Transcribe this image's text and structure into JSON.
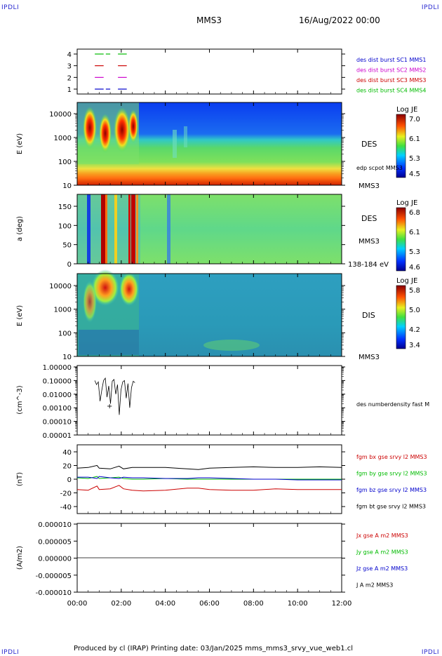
{
  "header": {
    "corner_left_top": "IPDLI",
    "corner_right_top": "IPDLI",
    "corner_left_bottom": "IPDLI",
    "corner_right_bottom": "IPDLI",
    "spacecraft": "MMS3",
    "date": "16/Aug/2022 00:00"
  },
  "footer": {
    "text": "Produced by cl (IRAP)   Printing date: 03/Jan/2025   mms_mms3_srvy_vue_web1.cl"
  },
  "x_axis": {
    "ticks": [
      "00:00",
      "02:00",
      "04:00",
      "06:00",
      "08:00",
      "10:00",
      "12:00"
    ],
    "range_hours": [
      0,
      12
    ]
  },
  "colors": {
    "mms1": "#0000cc",
    "mms2": "#cc00cc",
    "mms3": "#cc0000",
    "mms4": "#00bb00",
    "black": "#000000"
  },
  "chart_data": [
    {
      "type": "line",
      "panel": "burst-availability",
      "yticks": [
        "4",
        "3",
        "2",
        "1"
      ],
      "series": [
        {
          "name": "des dist burst SC1 MMS1",
          "level": 1,
          "color": "#0000cc",
          "segments_hours": [
            [
              0.8,
              1.2
            ],
            [
              1.3,
              1.5
            ],
            [
              1.85,
              2.25
            ]
          ]
        },
        {
          "name": "des dist burst SC2 MMS2",
          "level": 2,
          "color": "#cc00cc",
          "segments_hours": [
            [
              0.8,
              1.2
            ],
            [
              1.85,
              2.25
            ]
          ]
        },
        {
          "name": "des dist burst SC3 MMS3",
          "level": 3,
          "color": "#cc0000",
          "segments_hours": [
            [
              0.8,
              1.2
            ],
            [
              1.85,
              2.25
            ]
          ]
        },
        {
          "name": "des dist burst SC4 MMS4",
          "level": 4,
          "color": "#00bb00",
          "segments_hours": [
            [
              0.8,
              1.2
            ],
            [
              1.3,
              1.5
            ],
            [
              1.85,
              2.25
            ]
          ]
        }
      ]
    },
    {
      "type": "heatmap",
      "panel": "des-energy",
      "ylabel": "E (eV)",
      "yticks": [
        "10000",
        "1000",
        "100",
        "10"
      ],
      "scale": "log",
      "label": "DES",
      "sublabel": "MMS3",
      "overlay": "edp scpot MMS3",
      "colorbar": {
        "title": "Log JE",
        "ticks": [
          "7.0",
          "6.1",
          "5.3",
          "4.5"
        ],
        "min": 4.5,
        "max": 7.0
      }
    },
    {
      "type": "heatmap",
      "panel": "des-pitch",
      "ylabel": "a (deg)",
      "yticks": [
        "150",
        "100",
        "50",
        "0"
      ],
      "label": "DES",
      "sublabel": "MMS3",
      "energy_range": "138-184 eV",
      "colorbar": {
        "title": "Log JE",
        "ticks": [
          "6.8",
          "6.1",
          "5.3",
          "4.6"
        ],
        "min": 4.6,
        "max": 6.8
      }
    },
    {
      "type": "heatmap",
      "panel": "dis-energy",
      "ylabel": "E (eV)",
      "yticks": [
        "10000",
        "1000",
        "100",
        "10"
      ],
      "scale": "log",
      "label": "DIS",
      "sublabel": "MMS3",
      "colorbar": {
        "title": "Log JE",
        "ticks": [
          "5.8",
          "5.0",
          "4.2",
          "3.4"
        ],
        "min": 3.4,
        "max": 5.8
      }
    },
    {
      "type": "line",
      "panel": "density",
      "ylabel": "(cm^-3)",
      "yticks": [
        "1.00000",
        "0.10000",
        "0.01000",
        "0.00100",
        "0.00010",
        "0.00001"
      ],
      "scale": "log",
      "series": [
        {
          "name": "des numberdensity fast M",
          "color": "#000000"
        }
      ]
    },
    {
      "type": "line",
      "panel": "magnetic-field",
      "ylabel": "(nT)",
      "yticks": [
        "40",
        "20",
        "0",
        "-20",
        "-40"
      ],
      "ylim": [
        -50,
        50
      ],
      "x": [
        0,
        0.5,
        0.9,
        1.0,
        1.5,
        1.9,
        2.1,
        2.5,
        3,
        4,
        5,
        5.5,
        6,
        7,
        8,
        9,
        10,
        11,
        12
      ],
      "series": [
        {
          "name": "fgm bx gse srvy l2 MMS3",
          "color": "#cc0000",
          "values": [
            -15,
            -16,
            -10,
            -15,
            -14,
            -9,
            -14,
            -16,
            -17,
            -16,
            -13,
            -13,
            -15,
            -16,
            -16,
            -14,
            -15,
            -15,
            -15
          ]
        },
        {
          "name": "fgm by gse srvy l2 MMS3",
          "color": "#00bb00",
          "values": [
            2,
            1,
            4,
            1,
            2,
            3,
            1,
            0,
            0,
            1,
            0,
            0,
            0,
            0,
            0,
            0,
            0,
            0,
            0
          ]
        },
        {
          "name": "fgm bz gse srvy l2 MMS3",
          "color": "#0000cc",
          "values": [
            3,
            3,
            1,
            4,
            2,
            1,
            3,
            2,
            2,
            1,
            1,
            2,
            2,
            1,
            0,
            0,
            -1,
            -1,
            -1
          ]
        },
        {
          "name": "fgm bt gse srvy l2 MMS3",
          "color": "#000000",
          "values": [
            16,
            17,
            20,
            16,
            15,
            19,
            15,
            17,
            17,
            17,
            15,
            14,
            16,
            17,
            18,
            17,
            17,
            18,
            17
          ]
        }
      ]
    },
    {
      "type": "line",
      "panel": "current-density",
      "ylabel": "(A/m2)",
      "yticks": [
        "0.000010",
        "0.000005",
        "0.000000",
        "-0.000005",
        "-0.000010"
      ],
      "ylim": [
        -1e-05,
        1e-05
      ],
      "series": [
        {
          "name": "Jx gse A m2 MMS3",
          "color": "#cc0000"
        },
        {
          "name": "Jy gse A m2 MMS3",
          "color": "#00bb00"
        },
        {
          "name": "Jz gse A m2 MMS3",
          "color": "#0000cc"
        },
        {
          "name": "J A m2 MMS3",
          "color": "#000000"
        }
      ]
    }
  ]
}
